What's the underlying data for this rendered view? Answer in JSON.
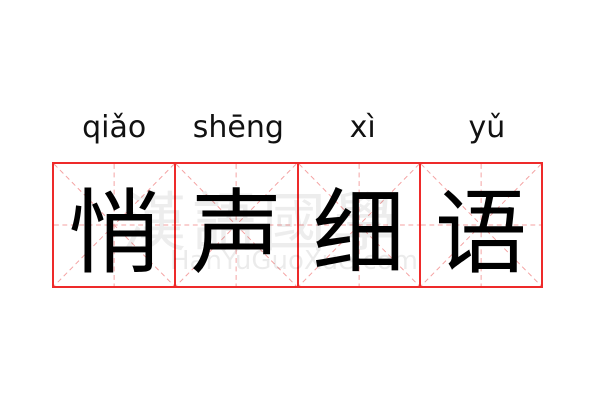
{
  "pinyin": [
    "qiǎo",
    "shēng",
    "xì",
    "yǔ"
  ],
  "characters": [
    "悄",
    "声",
    "细",
    "语"
  ],
  "watermark": {
    "chinese": "漢語國學",
    "site": "HanYuGuoXue.com"
  },
  "colors": {
    "grid_border": "#ee2a2a",
    "guide_lines": "#f4a0a0",
    "text": "#000000"
  }
}
